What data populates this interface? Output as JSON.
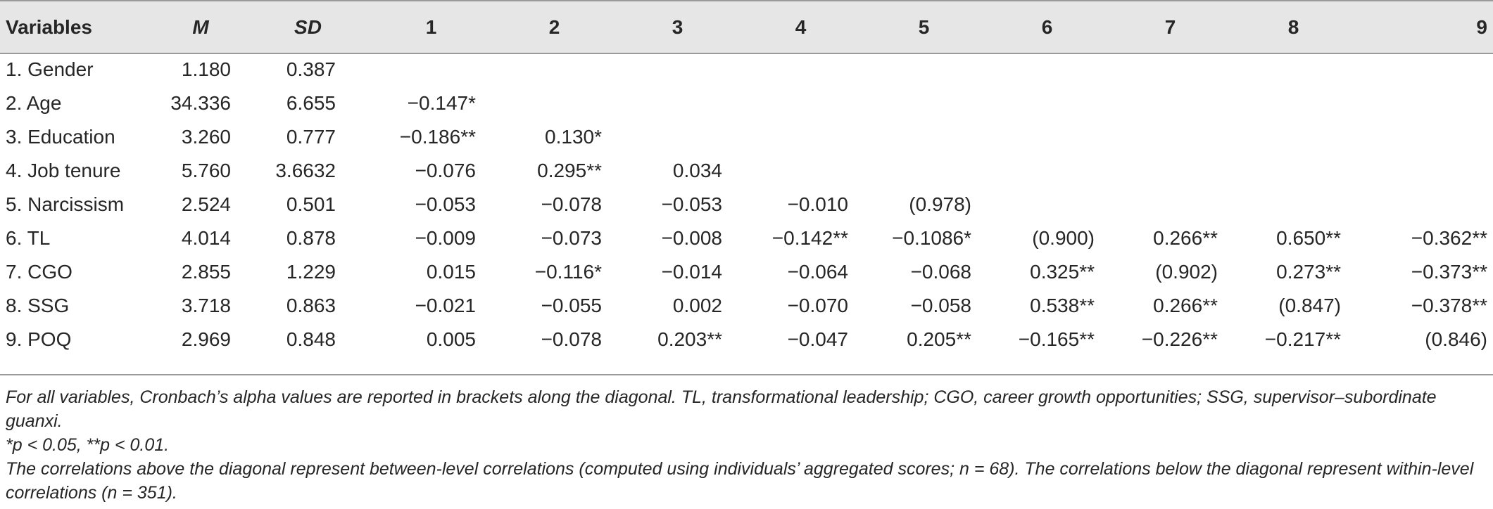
{
  "table": {
    "headers": [
      "Variables",
      "M",
      "SD",
      "1",
      "2",
      "3",
      "4",
      "5",
      "6",
      "7",
      "8",
      "9"
    ],
    "rows": [
      [
        "1. Gender",
        "1.180",
        "0.387",
        "",
        "",
        "",
        "",
        "",
        "",
        "",
        "",
        ""
      ],
      [
        "2. Age",
        "34.336",
        "6.655",
        "−0.147*",
        "",
        "",
        "",
        "",
        "",
        "",
        "",
        ""
      ],
      [
        "3. Education",
        "3.260",
        "0.777",
        "−0.186**",
        "0.130*",
        "",
        "",
        "",
        "",
        "",
        "",
        ""
      ],
      [
        "4. Job tenure",
        "5.760",
        "3.6632",
        "−0.076",
        "0.295**",
        "0.034",
        "",
        "",
        "",
        "",
        "",
        ""
      ],
      [
        "5. Narcissism",
        "2.524",
        "0.501",
        "−0.053",
        "−0.078",
        "−0.053",
        "−0.010",
        "(0.978)",
        "",
        "",
        "",
        ""
      ],
      [
        "6. TL",
        "4.014",
        "0.878",
        "−0.009",
        "−0.073",
        "−0.008",
        "−0.142**",
        "−0.1086*",
        "(0.900)",
        "0.266**",
        "0.650**",
        "−0.362**"
      ],
      [
        "7. CGO",
        "2.855",
        "1.229",
        "0.015",
        "−0.116*",
        "−0.014",
        "−0.064",
        "−0.068",
        "0.325**",
        "(0.902)",
        "0.273**",
        "−0.373**"
      ],
      [
        "8. SSG",
        "3.718",
        "0.863",
        "−0.021",
        "−0.055",
        "0.002",
        "−0.070",
        "−0.058",
        "0.538**",
        "0.266**",
        "(0.847)",
        "−0.378**"
      ],
      [
        "9. POQ",
        "2.969",
        "0.848",
        "0.005",
        "−0.078",
        "0.203**",
        "−0.047",
        "0.205**",
        "−0.165**",
        "−0.226**",
        "−0.217**",
        "(0.846)"
      ]
    ]
  },
  "notes": [
    "For all variables, Cronbach’s alpha values are reported in brackets along the diagonal. TL, transformational leadership; CGO, career growth opportunities; SSG, supervisor–subordinate guanxi.",
    "*p < 0.05, **p < 0.01.",
    "The correlations above the diagonal represent between-level correlations (computed using individuals’ aggregated scores; n = 68). The correlations below the diagonal represent within-level correlations (n = 351)."
  ]
}
